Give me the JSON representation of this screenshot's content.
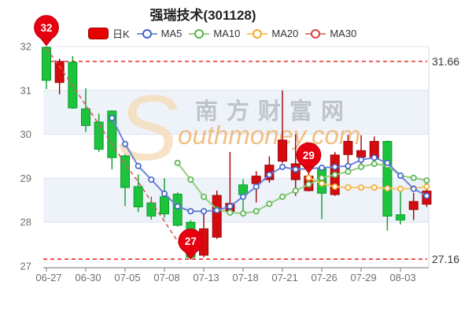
{
  "title": "强瑞技术(301128)",
  "legend": [
    {
      "id": "dayk",
      "label": "日K",
      "type": "rect",
      "color": "#e60000",
      "border": "#a50000"
    },
    {
      "id": "ma5",
      "label": "MA5",
      "type": "line",
      "color": "#7a8fdc",
      "ring": "#3f62cc"
    },
    {
      "id": "ma10",
      "label": "MA10",
      "type": "line",
      "color": "#95cd7e",
      "ring": "#54b44a"
    },
    {
      "id": "ma20",
      "label": "MA20",
      "type": "line",
      "color": "#f8c860",
      "ring": "#f0a929"
    },
    {
      "id": "ma30",
      "label": "MA30",
      "type": "line",
      "color": "#e88080",
      "ring": "#dd3c3c"
    }
  ],
  "watermark": {
    "cn": "南方财富网",
    "s": "S",
    "en": "outhmoney.com"
  },
  "ref_lines": [
    {
      "value": 31.66,
      "label": "31.66"
    },
    {
      "value": 27.16,
      "label": "27.16"
    }
  ],
  "pins": [
    {
      "label": "32",
      "index": 0,
      "value": 32.0
    },
    {
      "label": "27",
      "index": 11,
      "value": 27.14
    },
    {
      "label": "29",
      "index": 20,
      "value": 29.1
    }
  ],
  "colors": {
    "up_fill": "#d40c10",
    "up_stroke": "#9c0307",
    "down_fill": "#1dc23d",
    "down_stroke": "#0b9e2a",
    "pin_fill": "#e7000f",
    "pin_stroke": "#b8000c",
    "ref_line": "#e60000",
    "grid": "#dfe5f0",
    "band": "#eef2f9",
    "axis": "#8c8c8c",
    "tick_label": "#6f6f6f",
    "ref_label": "#3a3a3a",
    "wm_cn": "#9aa0a6",
    "wm_en": "#f0b066",
    "wm_s": "#f6ddbb"
  },
  "chart_data": {
    "type": "candlestick",
    "title": "强瑞技术(301128)",
    "ylabel": "",
    "xlabel": "",
    "grid": true,
    "legend_position": "top",
    "ylim": [
      27,
      32
    ],
    "y_ticks": [
      27,
      28,
      29,
      30,
      31,
      32
    ],
    "shaded_bands": [
      [
        31,
        30
      ],
      [
        29,
        28
      ]
    ],
    "x_tick_labels": [
      "06-27",
      "06-30",
      "07-05",
      "07-08",
      "07-13",
      "07-18",
      "07-21",
      "07-26",
      "07-29",
      "08-03"
    ],
    "x_tick_every": 3,
    "dates": [
      "06-27",
      "06-28",
      "06-29",
      "06-30",
      "07-01",
      "07-04",
      "07-05",
      "07-06",
      "07-07",
      "07-08",
      "07-11",
      "07-12",
      "07-13",
      "07-14",
      "07-15",
      "07-18",
      "07-19",
      "07-20",
      "07-21",
      "07-22",
      "07-25",
      "07-26",
      "07-27",
      "07-28",
      "07-29",
      "08-01",
      "08-02",
      "08-03",
      "08-04",
      "08-05"
    ],
    "candles_format": [
      "open",
      "close",
      "low",
      "high"
    ],
    "candles": [
      [
        31.98,
        31.23,
        31.03,
        32.0
      ],
      [
        31.18,
        31.66,
        30.91,
        31.72
      ],
      [
        31.64,
        30.6,
        30.58,
        31.78
      ],
      [
        30.58,
        30.2,
        30.05,
        31.05
      ],
      [
        30.28,
        29.66,
        29.6,
        30.47
      ],
      [
        30.53,
        29.47,
        29.2,
        30.55
      ],
      [
        29.51,
        28.79,
        28.37,
        29.55
      ],
      [
        28.81,
        28.35,
        28.23,
        29.09
      ],
      [
        28.44,
        28.14,
        28.06,
        28.58
      ],
      [
        28.58,
        28.19,
        28.1,
        29.0
      ],
      [
        28.64,
        27.93,
        27.9,
        28.68
      ],
      [
        28.0,
        27.2,
        27.16,
        28.05
      ],
      [
        27.25,
        27.85,
        27.2,
        28.22
      ],
      [
        27.66,
        28.61,
        27.62,
        28.72
      ],
      [
        28.25,
        28.43,
        28.2,
        29.6
      ],
      [
        28.85,
        28.63,
        28.18,
        28.98
      ],
      [
        28.88,
        29.05,
        28.45,
        29.16
      ],
      [
        28.97,
        29.3,
        28.9,
        29.5
      ],
      [
        29.39,
        29.87,
        29.35,
        31.0
      ],
      [
        28.97,
        29.33,
        28.6,
        30.0
      ],
      [
        28.72,
        29.05,
        28.7,
        29.12
      ],
      [
        29.24,
        28.66,
        28.07,
        29.3
      ],
      [
        28.63,
        29.53,
        28.6,
        29.6
      ],
      [
        29.54,
        29.84,
        29.3,
        29.99
      ],
      [
        29.48,
        29.63,
        29.33,
        29.98
      ],
      [
        29.45,
        29.84,
        29.4,
        29.95
      ],
      [
        29.84,
        28.14,
        27.81,
        29.86
      ],
      [
        28.17,
        28.05,
        27.95,
        28.8
      ],
      [
        28.29,
        28.47,
        28.05,
        28.67
      ],
      [
        28.41,
        28.71,
        28.35,
        28.9
      ]
    ],
    "series": [
      {
        "name": "MA20",
        "color": "#f8c860",
        "ring": "#f0a929",
        "dashed": false,
        "start": 20,
        "values": [
          29.01,
          28.88,
          28.81,
          28.79,
          28.79,
          28.79,
          28.77,
          28.76,
          28.77,
          28.81
        ]
      },
      {
        "name": "MA10",
        "color": "#95cd7e",
        "ring": "#54b44a",
        "dashed": false,
        "start": 10,
        "values": [
          29.35,
          28.97,
          28.58,
          28.29,
          28.22,
          28.2,
          28.25,
          28.42,
          28.58,
          28.72,
          28.86,
          29.01,
          29.08,
          29.15,
          29.26,
          29.33,
          29.29,
          29.06,
          29.01,
          28.95
        ]
      },
      {
        "name": "MA5",
        "color": "#6c84da",
        "ring": "#3f62cc",
        "dashed": false,
        "start": 5,
        "values": [
          30.37,
          29.78,
          29.28,
          28.97,
          28.65,
          28.36,
          28.25,
          28.25,
          28.27,
          28.36,
          28.58,
          28.81,
          29.08,
          29.26,
          29.2,
          29.22,
          29.24,
          29.26,
          29.28,
          29.42,
          29.47,
          29.35,
          29.06,
          28.76,
          28.6
        ]
      },
      {
        "name": "MA30",
        "color": "#e15858",
        "ring": "#dd3c3c",
        "dashed": true,
        "start": 0,
        "values": [
          31.95,
          31.55,
          31.1,
          30.67,
          30.23,
          29.78,
          29.33,
          28.92,
          28.47,
          28.02,
          27.57,
          27.16
        ]
      }
    ]
  }
}
